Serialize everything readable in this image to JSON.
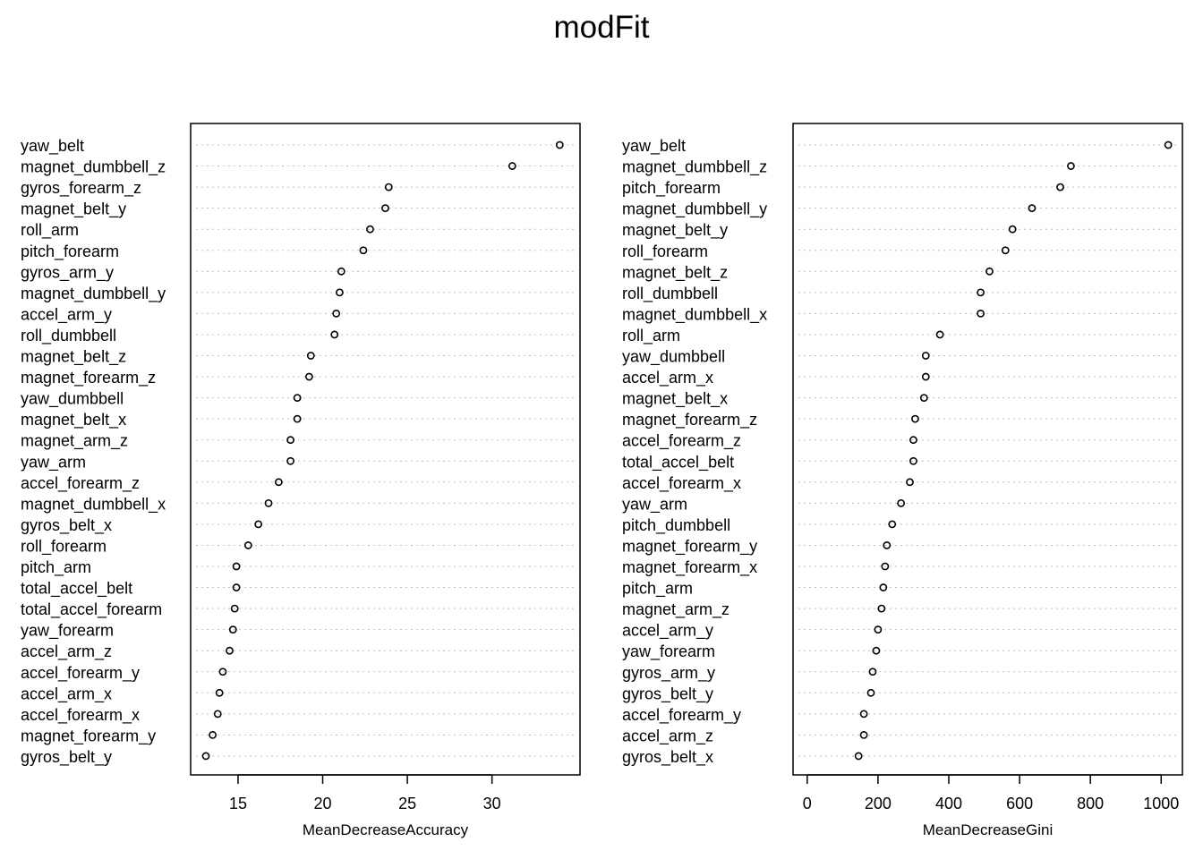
{
  "title": "modFit",
  "chart_data": [
    {
      "type": "scatter",
      "subtype": "dotchart",
      "xlabel": "MeanDecreaseAccuracy",
      "xlim": [
        12.2,
        35.2
      ],
      "xticks": [
        15,
        20,
        25,
        30
      ],
      "grid": "dotted horizontal",
      "labels": [
        "yaw_belt",
        "magnet_dumbbell_z",
        "gyros_forearm_z",
        "magnet_belt_y",
        "roll_arm",
        "pitch_forearm",
        "gyros_arm_y",
        "magnet_dumbbell_y",
        "accel_arm_y",
        "roll_dumbbell",
        "magnet_belt_z",
        "magnet_forearm_z",
        "yaw_dumbbell",
        "magnet_belt_x",
        "magnet_arm_z",
        "yaw_arm",
        "accel_forearm_z",
        "magnet_dumbbell_x",
        "gyros_belt_x",
        "roll_forearm",
        "pitch_arm",
        "total_accel_belt",
        "total_accel_forearm",
        "yaw_forearm",
        "accel_arm_z",
        "accel_forearm_y",
        "accel_arm_x",
        "accel_forearm_x",
        "magnet_forearm_y",
        "gyros_belt_y"
      ],
      "values": [
        34.0,
        31.2,
        23.9,
        23.7,
        22.8,
        22.4,
        21.1,
        21.0,
        20.8,
        20.7,
        19.3,
        19.2,
        18.5,
        18.5,
        18.1,
        18.1,
        17.4,
        16.8,
        16.2,
        15.6,
        14.9,
        14.9,
        14.8,
        14.7,
        14.5,
        14.1,
        13.9,
        13.8,
        13.5,
        13.1
      ]
    },
    {
      "type": "scatter",
      "subtype": "dotchart",
      "xlabel": "MeanDecreaseGini",
      "xlim": [
        -40,
        1060
      ],
      "xticks": [
        0,
        200,
        400,
        600,
        800,
        1000
      ],
      "grid": "dotted horizontal",
      "labels": [
        "yaw_belt",
        "magnet_dumbbell_z",
        "pitch_forearm",
        "magnet_dumbbell_y",
        "magnet_belt_y",
        "roll_forearm",
        "magnet_belt_z",
        "roll_dumbbell",
        "magnet_dumbbell_x",
        "roll_arm",
        "yaw_dumbbell",
        "accel_arm_x",
        "magnet_belt_x",
        "magnet_forearm_z",
        "accel_forearm_z",
        "total_accel_belt",
        "accel_forearm_x",
        "yaw_arm",
        "pitch_dumbbell",
        "magnet_forearm_y",
        "magnet_forearm_x",
        "pitch_arm",
        "magnet_arm_z",
        "accel_arm_y",
        "yaw_forearm",
        "gyros_arm_y",
        "gyros_belt_y",
        "accel_forearm_y",
        "accel_arm_z",
        "gyros_belt_x"
      ],
      "values": [
        1020,
        745,
        715,
        635,
        580,
        560,
        515,
        490,
        490,
        375,
        335,
        335,
        330,
        305,
        300,
        300,
        290,
        265,
        240,
        225,
        220,
        215,
        210,
        200,
        195,
        185,
        180,
        160,
        160,
        145
      ]
    }
  ]
}
